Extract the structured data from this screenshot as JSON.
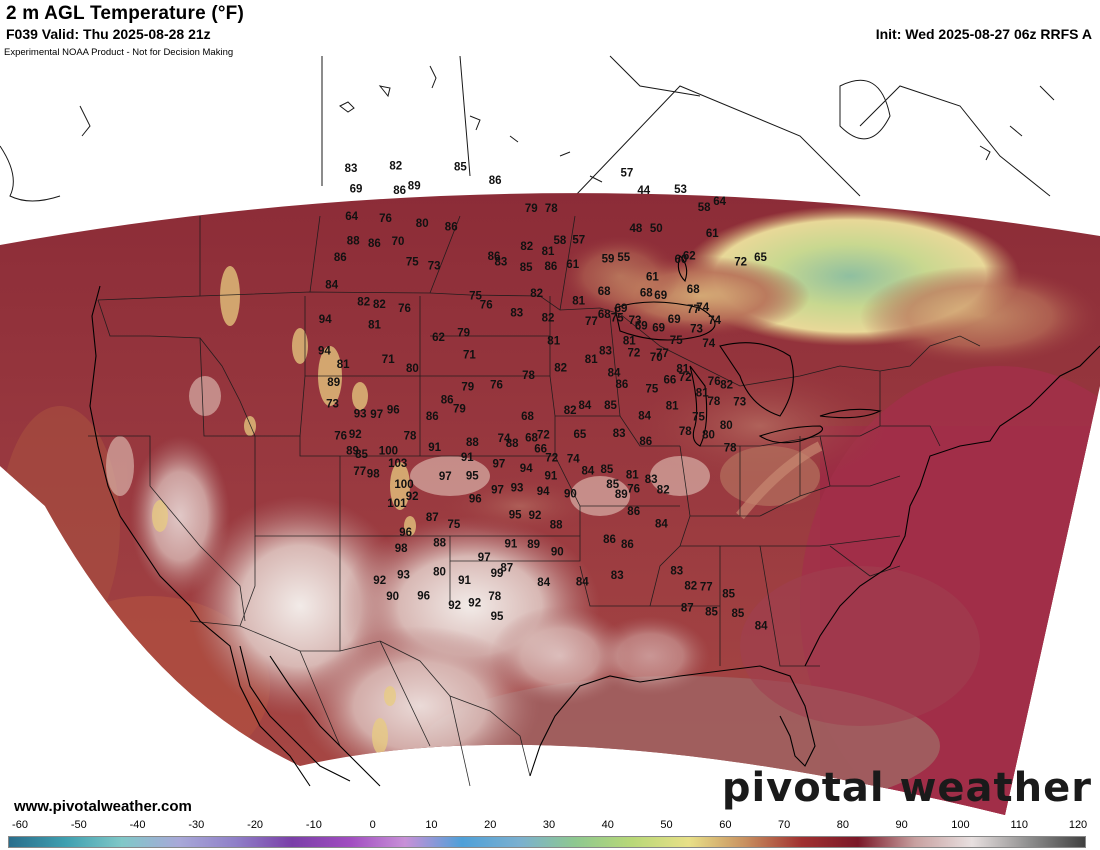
{
  "header": {
    "title": "2 m AGL Temperature (°F)",
    "valid": "F039 Valid: Thu 2025-08-28 21z",
    "init": "Init: Wed 2025-08-27 06z RRFS A",
    "disclaimer": "Experimental NOAA Product - Not for Decision Making"
  },
  "footer": {
    "website": "www.pivotalweather.com",
    "brand": "pivotal weather"
  },
  "colorbar": {
    "ticks": [
      "-60",
      "-50",
      "-40",
      "-30",
      "-20",
      "-10",
      "0",
      "10",
      "20",
      "30",
      "40",
      "50",
      "60",
      "70",
      "80",
      "90",
      "100",
      "110",
      "120"
    ],
    "colors": [
      "#2a6e8c",
      "#3fa0b0",
      "#80c8c8",
      "#a8a8d8",
      "#8f7fc8",
      "#7a3fa8",
      "#a04cc0",
      "#c890d8",
      "#4fa0d8",
      "#7ab0d0",
      "#8ec890",
      "#b8d878",
      "#e8e088",
      "#c89060",
      "#a03030",
      "#7a1828",
      "#c8a0a0",
      "#e8e0e0",
      "#909090",
      "#404040"
    ]
  },
  "map": {
    "labels": [
      {
        "v": "85",
        "lon": -110,
        "lat": 51.8
      },
      {
        "v": "82",
        "lon": -120,
        "lat": 51
      },
      {
        "v": "83",
        "lon": -126.5,
        "lat": 50
      },
      {
        "v": "86",
        "lon": -104.3,
        "lat": 51.2
      },
      {
        "v": "89",
        "lon": -116.5,
        "lat": 50
      },
      {
        "v": "86",
        "lon": -118.5,
        "lat": 49.5
      },
      {
        "v": "69",
        "lon": -124.8,
        "lat": 48.8
      },
      {
        "v": "64",
        "lon": -124.2,
        "lat": 47
      },
      {
        "v": "76",
        "lon": -119.5,
        "lat": 47.5
      },
      {
        "v": "88",
        "lon": -123,
        "lat": 45.5
      },
      {
        "v": "86",
        "lon": -120.1,
        "lat": 45.7
      },
      {
        "v": "86",
        "lon": -124,
        "lat": 44.2
      },
      {
        "v": "84",
        "lon": -124,
        "lat": 42.3
      },
      {
        "v": "70",
        "lon": -117,
        "lat": 46.2
      },
      {
        "v": "80",
        "lon": -114.2,
        "lat": 47.7
      },
      {
        "v": "86",
        "lon": -110,
        "lat": 47.8
      },
      {
        "v": "79",
        "lon": -98.5,
        "lat": 49.5
      },
      {
        "v": "78",
        "lon": -95.5,
        "lat": 49.5
      },
      {
        "v": "57",
        "lon": -83.5,
        "lat": 51.5
      },
      {
        "v": "75",
        "lon": -114.5,
        "lat": 45.1
      },
      {
        "v": "73",
        "lon": -111.5,
        "lat": 45.1
      },
      {
        "v": "82",
        "lon": -119.5,
        "lat": 41.8
      },
      {
        "v": "82",
        "lon": -117.5,
        "lat": 41.9
      },
      {
        "v": "76",
        "lon": -114.3,
        "lat": 42
      },
      {
        "v": "81",
        "lon": -117.5,
        "lat": 40.5
      },
      {
        "v": "94",
        "lon": -123.5,
        "lat": 40
      },
      {
        "v": "94",
        "lon": -122.5,
        "lat": 38
      },
      {
        "v": "81",
        "lon": -120,
        "lat": 37.5
      },
      {
        "v": "89",
        "lon": -120.5,
        "lat": 36.2
      },
      {
        "v": "73",
        "lon": -120,
        "lat": 34.8
      },
      {
        "v": "71",
        "lon": -115,
        "lat": 38.5
      },
      {
        "v": "62",
        "lon": -109.5,
        "lat": 40.5
      },
      {
        "v": "75",
        "lon": -105.5,
        "lat": 43.5
      },
      {
        "v": "79",
        "lon": -106.5,
        "lat": 41
      },
      {
        "v": "76",
        "lon": -104,
        "lat": 43
      },
      {
        "v": "86",
        "lon": -103.5,
        "lat": 46.2
      },
      {
        "v": "82",
        "lon": -99,
        "lat": 47
      },
      {
        "v": "83",
        "lon": -102.5,
        "lat": 45.9
      },
      {
        "v": "85",
        "lon": -99,
        "lat": 45.6
      },
      {
        "v": "81",
        "lon": -96,
        "lat": 46.7
      },
      {
        "v": "86",
        "lon": -95.6,
        "lat": 45.7
      },
      {
        "v": "82",
        "lon": -97.5,
        "lat": 43.9
      },
      {
        "v": "83",
        "lon": -100,
        "lat": 42.6
      },
      {
        "v": "82",
        "lon": -96,
        "lat": 42.3
      },
      {
        "v": "81",
        "lon": -95.3,
        "lat": 40.8
      },
      {
        "v": "81",
        "lon": -92,
        "lat": 43.4
      },
      {
        "v": "77",
        "lon": -90.5,
        "lat": 42
      },
      {
        "v": "71",
        "lon": -105.5,
        "lat": 39.6
      },
      {
        "v": "80",
        "lon": -112,
        "lat": 38.2
      },
      {
        "v": "79",
        "lon": -105.3,
        "lat": 37.5
      },
      {
        "v": "76",
        "lon": -102,
        "lat": 37.8
      },
      {
        "v": "86",
        "lon": -107.5,
        "lat": 36.5
      },
      {
        "v": "79",
        "lon": -106,
        "lat": 36
      },
      {
        "v": "78",
        "lon": -98.3,
        "lat": 38.5
      },
      {
        "v": "82",
        "lon": -94.5,
        "lat": 39
      },
      {
        "v": "81",
        "lon": -90.8,
        "lat": 39.5
      },
      {
        "v": "83",
        "lon": -89,
        "lat": 40
      },
      {
        "v": "84",
        "lon": -88.2,
        "lat": 38.5
      },
      {
        "v": "81",
        "lon": -86,
        "lat": 40.5
      },
      {
        "v": "72",
        "lon": -85.6,
        "lat": 39.7
      },
      {
        "v": "70",
        "lon": -83,
        "lat": 39.2
      },
      {
        "v": "68",
        "lon": -98.3,
        "lat": 35.8
      },
      {
        "v": "74",
        "lon": -100.8,
        "lat": 34.3
      },
      {
        "v": "72",
        "lon": -96.5,
        "lat": 34.6
      },
      {
        "v": "82",
        "lon": -93.5,
        "lat": 36.2
      },
      {
        "v": "84",
        "lon": -91.8,
        "lat": 36.5
      },
      {
        "v": "86",
        "lon": -87.4,
        "lat": 37.7
      },
      {
        "v": "85",
        "lon": -88.9,
        "lat": 36.4
      },
      {
        "v": "84",
        "lon": -85.2,
        "lat": 35.5
      },
      {
        "v": "75",
        "lon": -84,
        "lat": 37.2
      },
      {
        "v": "66",
        "lon": -81.8,
        "lat": 37.6
      },
      {
        "v": "65",
        "lon": -92.5,
        "lat": 34.6
      },
      {
        "v": "83",
        "lon": -88.2,
        "lat": 34.5
      },
      {
        "v": "81",
        "lon": -82,
        "lat": 35.9
      },
      {
        "v": "81",
        "lon": -78.4,
        "lat": 36.4
      },
      {
        "v": "76",
        "lon": -76.8,
        "lat": 37
      },
      {
        "v": "82",
        "lon": -75.5,
        "lat": 36.6
      },
      {
        "v": "78",
        "lon": -77.3,
        "lat": 35.7
      },
      {
        "v": "73",
        "lon": -74.5,
        "lat": 35.3
      },
      {
        "v": "75",
        "lon": -79.3,
        "lat": 34.9
      },
      {
        "v": "78",
        "lon": -81,
        "lat": 34.1
      },
      {
        "v": "80",
        "lon": -78.6,
        "lat": 33.6
      },
      {
        "v": "80",
        "lon": -76.5,
        "lat": 34
      },
      {
        "v": "78",
        "lon": -76.6,
        "lat": 32.5
      },
      {
        "v": "86",
        "lon": -85.4,
        "lat": 33.8
      },
      {
        "v": "97",
        "lon": -115,
        "lat": 34.8
      },
      {
        "v": "93",
        "lon": -116.8,
        "lat": 34.6
      },
      {
        "v": "92",
        "lon": -116.8,
        "lat": 33.2
      },
      {
        "v": "76",
        "lon": -118.3,
        "lat": 32.9
      },
      {
        "v": "89",
        "lon": -116.7,
        "lat": 32.1
      },
      {
        "v": "85",
        "lon": -115.7,
        "lat": 32
      },
      {
        "v": "77",
        "lon": -115.5,
        "lat": 30.9
      },
      {
        "v": "98",
        "lon": -114.1,
        "lat": 30.9
      },
      {
        "v": "100",
        "lon": -113,
        "lat": 32.6
      },
      {
        "v": "103",
        "lon": -111.8,
        "lat": 31.9
      },
      {
        "v": "100",
        "lon": -110.8,
        "lat": 30.6
      },
      {
        "v": "78",
        "lon": -111,
        "lat": 33.8
      },
      {
        "v": "96",
        "lon": -113.3,
        "lat": 35.3
      },
      {
        "v": "86",
        "lon": -108.9,
        "lat": 35.3
      },
      {
        "v": "91",
        "lon": -108.2,
        "lat": 33.3
      },
      {
        "v": "97",
        "lon": -106.7,
        "lat": 31.5
      },
      {
        "v": "92",
        "lon": -109.8,
        "lat": 29.9
      },
      {
        "v": "101",
        "lon": -111.2,
        "lat": 29.3
      },
      {
        "v": "88",
        "lon": -104.2,
        "lat": 33.9
      },
      {
        "v": "91",
        "lon": -104.6,
        "lat": 32.9
      },
      {
        "v": "95",
        "lon": -103.9,
        "lat": 31.7
      },
      {
        "v": "96",
        "lon": -103.4,
        "lat": 30.2
      },
      {
        "v": "97",
        "lon": -101.2,
        "lat": 32.6
      },
      {
        "v": "97",
        "lon": -101.2,
        "lat": 30.9
      },
      {
        "v": "93",
        "lon": -99.2,
        "lat": 31.1
      },
      {
        "v": "88",
        "lon": -99.9,
        "lat": 34
      },
      {
        "v": "66",
        "lon": -96.8,
        "lat": 33.7
      },
      {
        "v": "72",
        "lon": -95.6,
        "lat": 33.1
      },
      {
        "v": "94",
        "lon": -98.3,
        "lat": 32.4
      },
      {
        "v": "94",
        "lon": -96.5,
        "lat": 30.9
      },
      {
        "v": "68",
        "lon": -97.8,
        "lat": 34.4
      },
      {
        "v": "95",
        "lon": -99.3,
        "lat": 29.3
      },
      {
        "v": "92",
        "lon": -97.3,
        "lat": 29.3
      },
      {
        "v": "88",
        "lon": -95.2,
        "lat": 28.7
      },
      {
        "v": "91",
        "lon": -95.7,
        "lat": 31.9
      },
      {
        "v": "90",
        "lon": -93.7,
        "lat": 30.7
      },
      {
        "v": "74",
        "lon": -93.3,
        "lat": 33
      },
      {
        "v": "84",
        "lon": -91.8,
        "lat": 32.2
      },
      {
        "v": "85",
        "lon": -89.8,
        "lat": 32.2
      },
      {
        "v": "85",
        "lon": -89.3,
        "lat": 31.2
      },
      {
        "v": "89",
        "lon": -88.5,
        "lat": 30.5
      },
      {
        "v": "76",
        "lon": -87.2,
        "lat": 30.8
      },
      {
        "v": "81",
        "lon": -87.2,
        "lat": 31.7
      },
      {
        "v": "83",
        "lon": -85.3,
        "lat": 31.3
      },
      {
        "v": "82",
        "lon": -84.2,
        "lat": 30.5
      },
      {
        "v": "86",
        "lon": -87.4,
        "lat": 29.3
      },
      {
        "v": "86",
        "lon": -90,
        "lat": 27.6
      },
      {
        "v": "86",
        "lon": -88.3,
        "lat": 27.2
      },
      {
        "v": "84",
        "lon": -84.8,
        "lat": 28.3
      },
      {
        "v": "89",
        "lon": -97.4,
        "lat": 27.4
      },
      {
        "v": "90",
        "lon": -95.1,
        "lat": 26.9
      },
      {
        "v": "91",
        "lon": -99.6,
        "lat": 27.4
      },
      {
        "v": "84",
        "lon": -96.4,
        "lat": 24.9
      },
      {
        "v": "84",
        "lon": -92.8,
        "lat": 24.9
      },
      {
        "v": "83",
        "lon": -89.5,
        "lat": 25.2
      },
      {
        "v": "83",
        "lon": -83.9,
        "lat": 25.1
      },
      {
        "v": "82",
        "lon": -82.8,
        "lat": 24
      },
      {
        "v": "77",
        "lon": -81.4,
        "lat": 23.8
      },
      {
        "v": "87",
        "lon": -83.4,
        "lat": 22.6
      },
      {
        "v": "85",
        "lon": -81.3,
        "lat": 22.1
      },
      {
        "v": "85",
        "lon": -79.5,
        "lat": 23.1
      },
      {
        "v": "85",
        "lon": -79,
        "lat": 21.7
      },
      {
        "v": "84",
        "lon": -77.2,
        "lat": 20.6
      },
      {
        "v": "97",
        "lon": -102.1,
        "lat": 26.4
      },
      {
        "v": "99",
        "lon": -100.8,
        "lat": 25.4
      },
      {
        "v": "87",
        "lon": -99.9,
        "lat": 25.8
      },
      {
        "v": "88",
        "lon": -106.5,
        "lat": 27.1
      },
      {
        "v": "75",
        "lon": -105.3,
        "lat": 28.4
      },
      {
        "v": "87",
        "lon": -107.5,
        "lat": 28.7
      },
      {
        "v": "96",
        "lon": -109.9,
        "lat": 27.5
      },
      {
        "v": "98",
        "lon": -110.1,
        "lat": 26.4
      },
      {
        "v": "80",
        "lon": -106.2,
        "lat": 25.2
      },
      {
        "v": "91",
        "lon": -103.8,
        "lat": 24.8
      },
      {
        "v": "92",
        "lon": -104.5,
        "lat": 23.1
      },
      {
        "v": "92",
        "lon": -102.7,
        "lat": 23.4
      },
      {
        "v": "78",
        "lon": -100.9,
        "lat": 23.9
      },
      {
        "v": "95",
        "lon": -100.6,
        "lat": 22.6
      },
      {
        "v": "93",
        "lon": -109.5,
        "lat": 24.7
      },
      {
        "v": "96",
        "lon": -107.4,
        "lat": 23.5
      },
      {
        "v": "92",
        "lon": -111.6,
        "lat": 24.1
      },
      {
        "v": "90",
        "lon": -110.2,
        "lat": 23.2
      },
      {
        "v": "57",
        "lon": -91.6,
        "lat": 47.4
      },
      {
        "v": "58",
        "lon": -94.3,
        "lat": 47.4
      },
      {
        "v": "61",
        "lon": -92.6,
        "lat": 45.8
      },
      {
        "v": "59",
        "lon": -87.7,
        "lat": 46
      },
      {
        "v": "55",
        "lon": -85.5,
        "lat": 46
      },
      {
        "v": "44",
        "lon": -81.3,
        "lat": 50.2
      },
      {
        "v": "48",
        "lon": -83.3,
        "lat": 47.8
      },
      {
        "v": "50",
        "lon": -80.4,
        "lat": 47.6
      },
      {
        "v": "53",
        "lon": -75.8,
        "lat": 49.8
      },
      {
        "v": "58",
        "lon": -73,
        "lat": 48.3
      },
      {
        "v": "64",
        "lon": -70.6,
        "lat": 48.4
      },
      {
        "v": "61",
        "lon": -72.8,
        "lat": 46.5
      },
      {
        "v": "60",
        "lon": -77.8,
        "lat": 45.3
      },
      {
        "v": "62",
        "lon": -76.6,
        "lat": 45.4
      },
      {
        "v": "72",
        "lon": -70.1,
        "lat": 44.2
      },
      {
        "v": "65",
        "lon": -67.4,
        "lat": 44.1
      },
      {
        "v": "61",
        "lon": -82,
        "lat": 44.5
      },
      {
        "v": "68",
        "lon": -83.1,
        "lat": 43.5
      },
      {
        "v": "69",
        "lon": -81.3,
        "lat": 43.2
      },
      {
        "v": "68",
        "lon": -88.6,
        "lat": 43.9
      },
      {
        "v": "68",
        "lon": -88.8,
        "lat": 42.4
      },
      {
        "v": "75",
        "lon": -87.2,
        "lat": 42.1
      },
      {
        "v": "69",
        "lon": -86.6,
        "lat": 42.7
      },
      {
        "v": "73",
        "lon": -85,
        "lat": 41.8
      },
      {
        "v": "69",
        "lon": -84.3,
        "lat": 41.4
      },
      {
        "v": "69",
        "lon": -82.2,
        "lat": 41.1
      },
      {
        "v": "69",
        "lon": -80.1,
        "lat": 41.5
      },
      {
        "v": "75",
        "lon": -80.3,
        "lat": 40.1
      },
      {
        "v": "73",
        "lon": -77.6,
        "lat": 40.6
      },
      {
        "v": "77",
        "lon": -77.5,
        "lat": 41.9
      },
      {
        "v": "74",
        "lon": -75.2,
        "lat": 40.9
      },
      {
        "v": "74",
        "lon": -76.5,
        "lat": 39.5
      },
      {
        "v": "77",
        "lon": -82.2,
        "lat": 39.4
      },
      {
        "v": "72",
        "lon": -80,
        "lat": 37.6
      },
      {
        "v": "81",
        "lon": -80.1,
        "lat": 38.2
      },
      {
        "v": "74",
        "lon": -76.3,
        "lat": 41.9
      },
      {
        "v": "68",
        "lon": -77,
        "lat": 43.2
      }
    ]
  }
}
